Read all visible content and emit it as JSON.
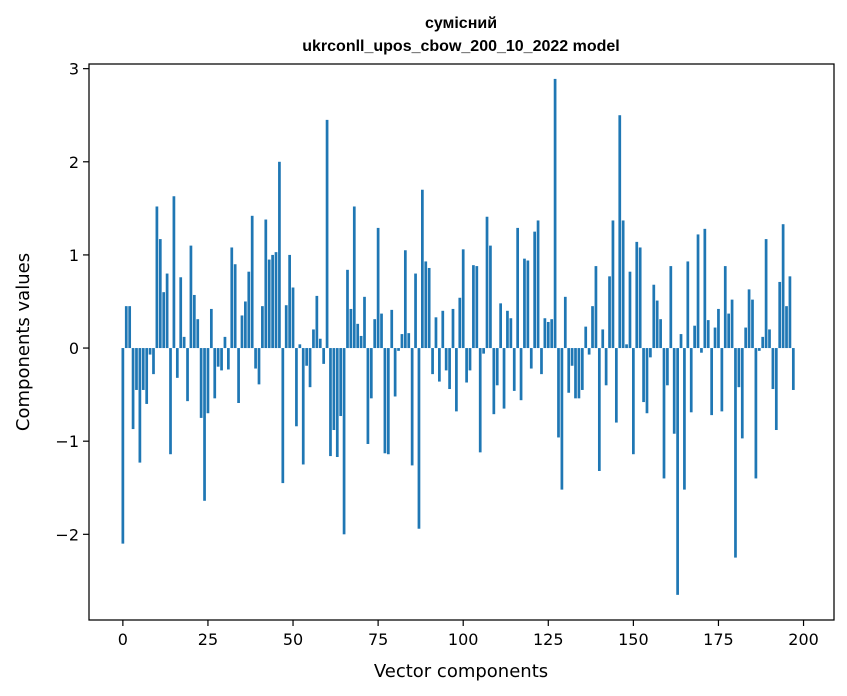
{
  "chart_data": {
    "type": "bar",
    "title_lines": [
      "сумісний",
      "ukrconll_upos_cbow_200_10_2022 model"
    ],
    "xlabel": "Vector components",
    "ylabel": "Components values",
    "xlim": [
      -9.95,
      208.95
    ],
    "ylim": [
      -2.92,
      3.05
    ],
    "xticks": [
      0,
      25,
      50,
      75,
      100,
      125,
      150,
      175,
      200
    ],
    "yticks": [
      -2,
      -1,
      0,
      1,
      2,
      3
    ],
    "ytick_labels": [
      "−2",
      "−1",
      "0",
      "1",
      "2",
      "3"
    ],
    "bar_color": "#1f77b4",
    "grid": false,
    "values": [
      -2.1,
      0.45,
      0.45,
      -0.87,
      -0.45,
      -1.23,
      -0.45,
      -0.6,
      -0.07,
      -0.28,
      1.52,
      1.17,
      0.6,
      0.8,
      -1.14,
      1.63,
      -0.32,
      0.76,
      0.12,
      -0.57,
      1.1,
      0.57,
      0.31,
      -0.75,
      -1.64,
      -0.7,
      0.42,
      -0.54,
      -0.2,
      -0.24,
      0.12,
      -0.23,
      1.08,
      0.9,
      -0.59,
      0.35,
      0.5,
      0.82,
      1.42,
      -0.22,
      -0.39,
      0.45,
      1.38,
      0.95,
      1.0,
      1.03,
      2.0,
      -1.45,
      0.46,
      1.0,
      0.65,
      -0.84,
      0.04,
      -1.25,
      -0.19,
      -0.42,
      0.2,
      0.56,
      0.1,
      -0.17,
      2.45,
      -1.16,
      -0.88,
      -1.17,
      -0.73,
      -2.0,
      0.84,
      0.42,
      1.52,
      0.26,
      0.13,
      0.55,
      -1.03,
      -0.54,
      0.31,
      1.29,
      0.37,
      -1.13,
      -1.14,
      0.41,
      -0.52,
      -0.03,
      0.15,
      1.05,
      0.16,
      -1.26,
      0.8,
      -1.94,
      1.7,
      0.93,
      0.86,
      -0.28,
      0.33,
      -0.36,
      0.4,
      -0.24,
      -0.44,
      0.42,
      -0.68,
      0.54,
      1.06,
      -0.37,
      -0.24,
      0.89,
      0.88,
      -1.12,
      -0.06,
      1.41,
      1.1,
      -0.71,
      -0.4,
      0.48,
      -0.65,
      0.4,
      0.32,
      -0.46,
      1.29,
      -0.56,
      0.96,
      0.94,
      -0.22,
      1.25,
      1.37,
      -0.28,
      0.32,
      0.28,
      0.31,
      2.89,
      -0.96,
      -1.52,
      0.55,
      -0.48,
      -0.19,
      -0.54,
      -0.54,
      -0.45,
      0.23,
      -0.07,
      0.45,
      0.88,
      -1.32,
      0.2,
      -0.4,
      0.77,
      1.37,
      -0.8,
      2.5,
      1.37,
      0.04,
      0.82,
      -1.14,
      1.14,
      1.08,
      -0.58,
      -0.7,
      -0.1,
      0.68,
      0.51,
      0.31,
      -1.4,
      -0.4,
      0.88,
      -0.92,
      -2.65,
      0.15,
      -1.52,
      0.93,
      -0.69,
      0.24,
      1.22,
      -0.05,
      1.28,
      0.3,
      -0.72,
      0.22,
      0.42,
      -0.68,
      0.88,
      0.37,
      0.52,
      -2.25,
      -0.42,
      -0.97,
      0.22,
      0.63,
      0.52,
      -1.4,
      -0.03,
      0.12,
      1.17,
      0.2,
      -0.44,
      -0.88,
      0.71,
      1.33,
      0.45,
      0.77,
      -0.45
    ]
  }
}
